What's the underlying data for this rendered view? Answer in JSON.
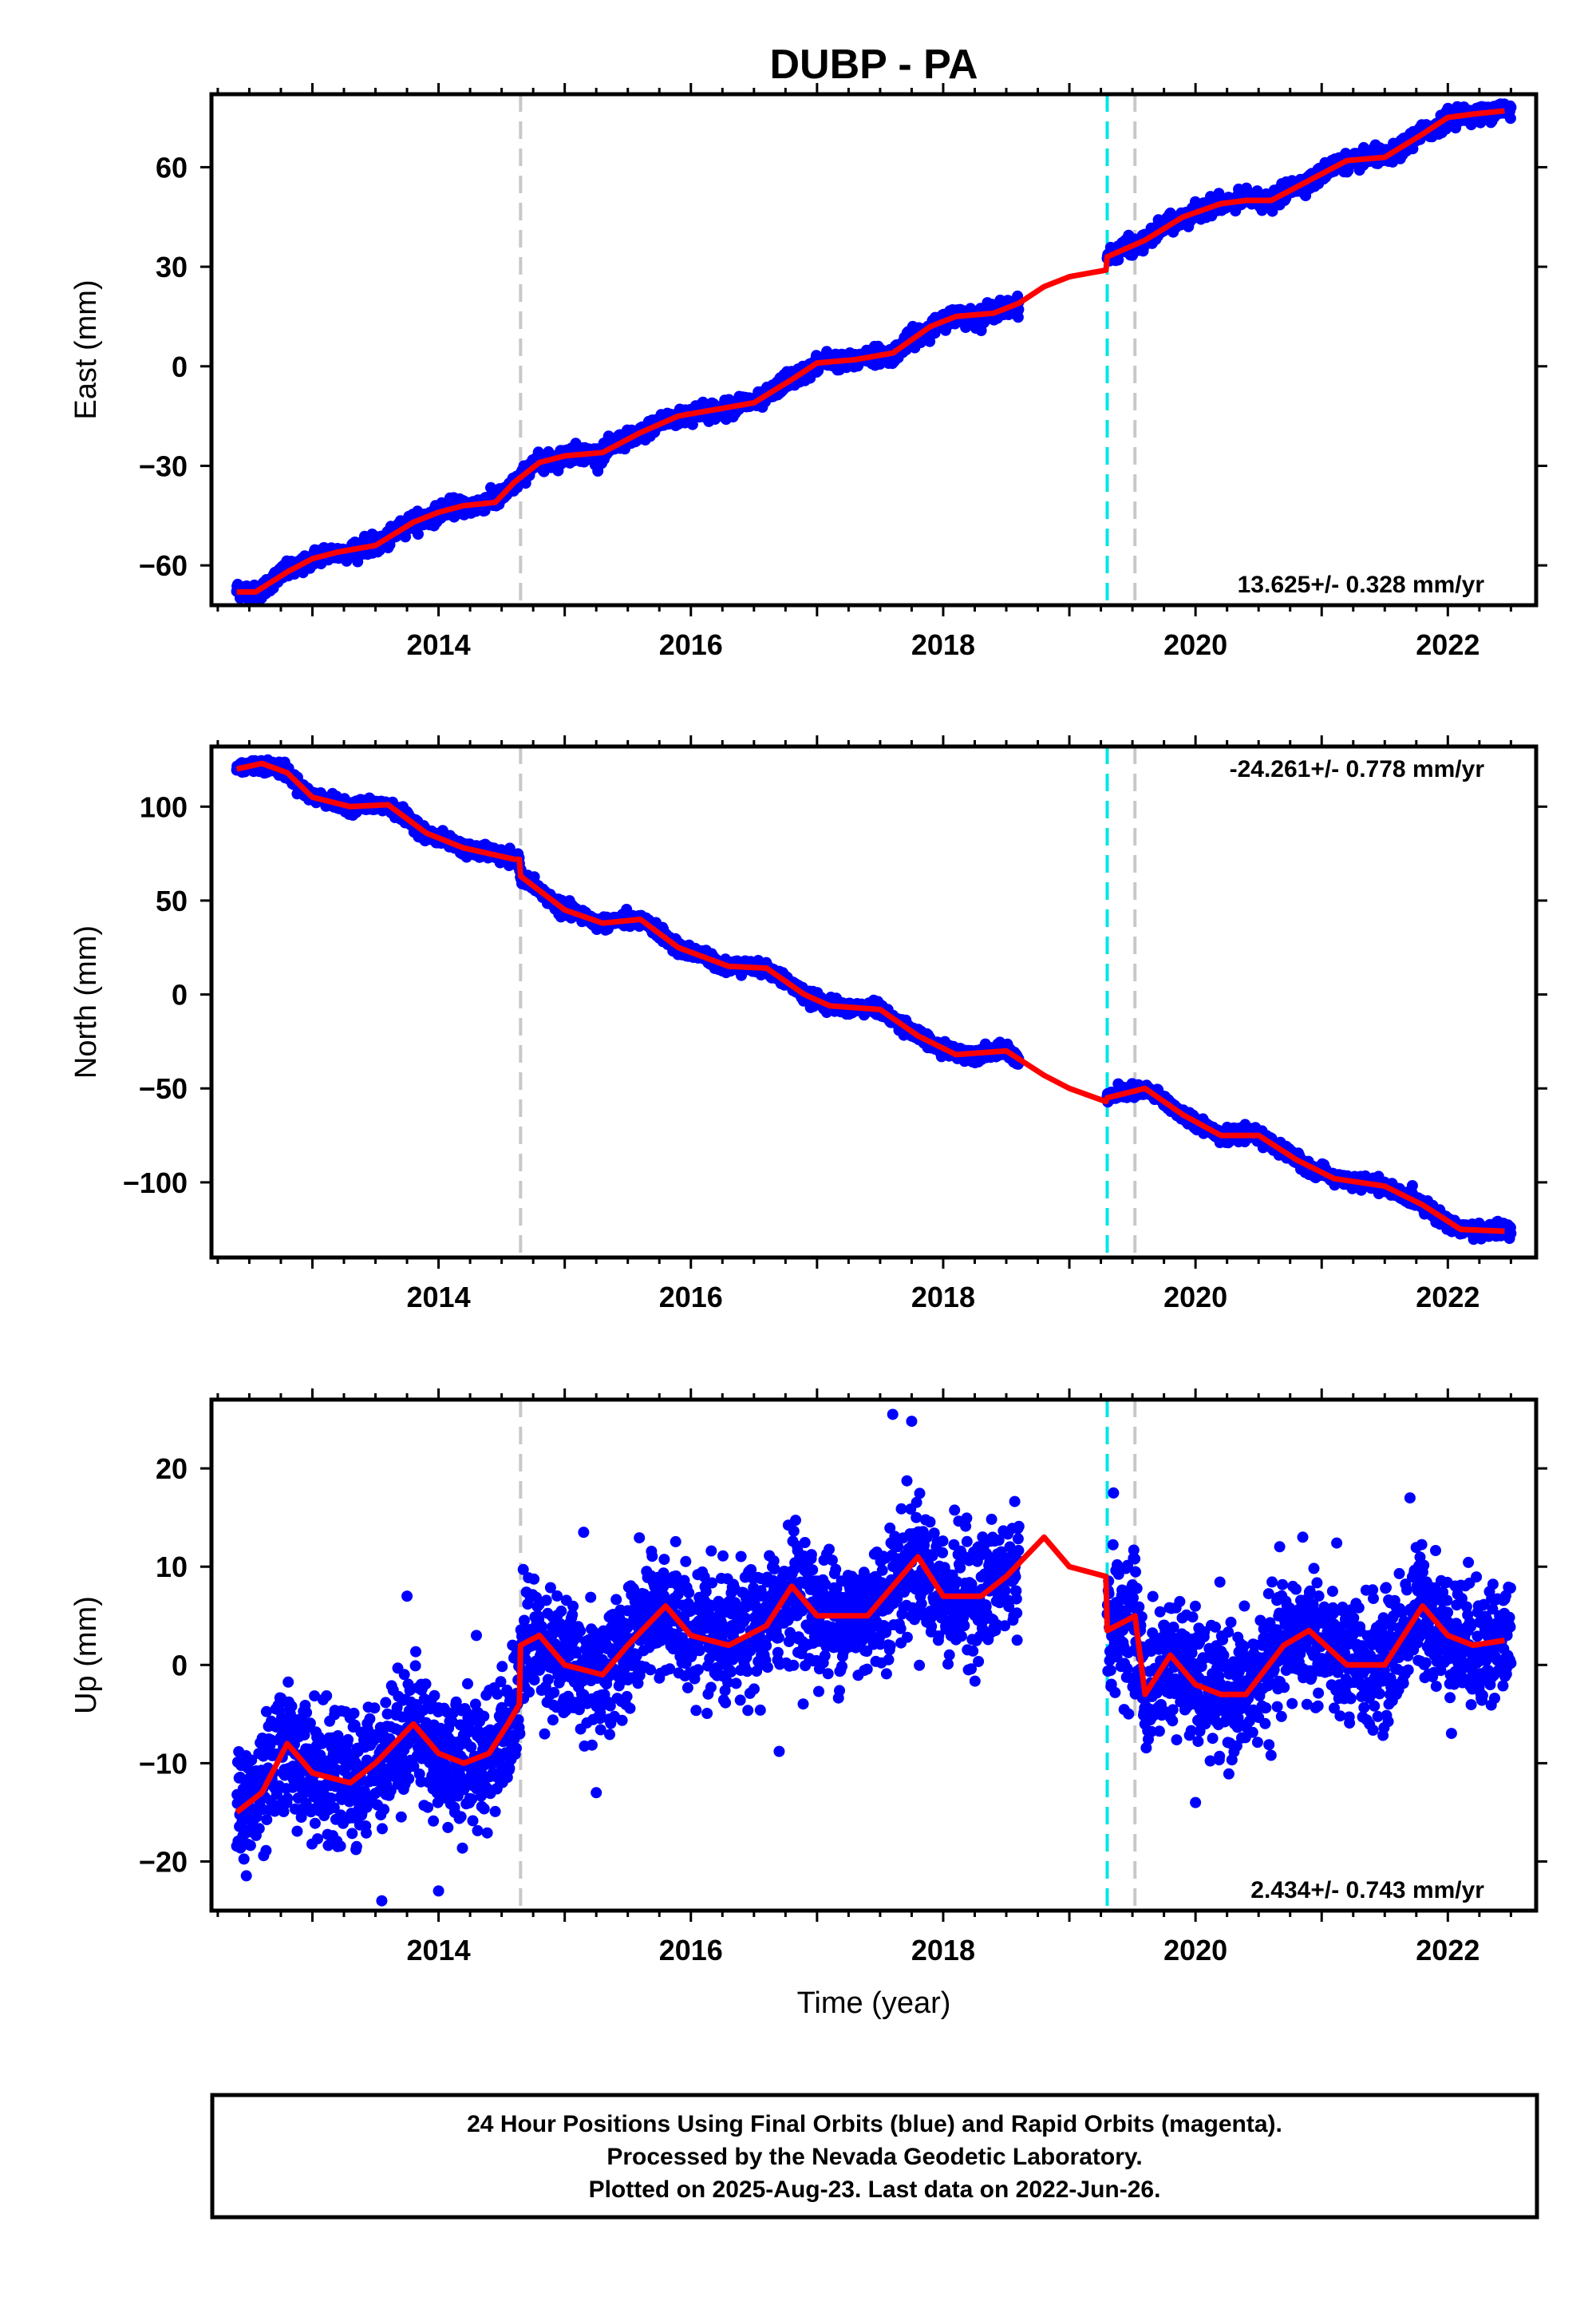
{
  "title": "DUBP - PA",
  "footer": {
    "lines": [
      "24 Hour Positions Using Final Orbits (blue) and Rapid Orbits (magenta).",
      "Processed by the Nevada Geodetic Laboratory.",
      "Plotted on 2025-Aug-23. Last data on 2022-Jun-26."
    ]
  },
  "colors": {
    "data_points": "#0000ff",
    "model_fit": "#ff0000",
    "antenna_change_line": "#c8c8c8",
    "earthquake_line": "#00e5e5"
  },
  "chart_data": [
    {
      "type": "scatter",
      "ylabel": "East (mm)",
      "xlabel": "",
      "xlim": [
        2012.2,
        2022.7
      ],
      "ylim": [
        -72,
        82
      ],
      "x_ticks": [
        2014,
        2016,
        2018,
        2020,
        2022
      ],
      "y_ticks": [
        60,
        30,
        0,
        -30,
        -60
      ],
      "y_tick_labels": [
        "60",
        "30",
        "0",
        "−30",
        "−60"
      ],
      "rate_label": "13.625+/- 0.328 mm/yr",
      "rate_position": "bottom-right",
      "vlines_gray": [
        2014.65,
        2019.52
      ],
      "vlines_cyan": [
        2019.3
      ],
      "model": {
        "x": [
          2012.4,
          2012.55,
          2012.8,
          2013.0,
          2013.2,
          2013.5,
          2013.8,
          2014.0,
          2014.2,
          2014.45,
          2014.6,
          2014.8,
          2015.0,
          2015.3,
          2015.6,
          2015.9,
          2016.2,
          2016.5,
          2016.8,
          2017.0,
          2017.3,
          2017.6,
          2017.9,
          2018.1,
          2018.4,
          2018.6,
          2018.8,
          2019.0,
          2019.29,
          2019.3,
          2019.6,
          2019.9,
          2020.2,
          2020.4,
          2020.6,
          2020.9,
          2021.2,
          2021.5,
          2021.8,
          2022.0,
          2022.2,
          2022.45
        ],
        "y": [
          -68,
          -68,
          -62,
          -58,
          -56,
          -54,
          -47,
          -44,
          -42,
          -41,
          -35,
          -29,
          -27,
          -26,
          -20,
          -15,
          -13,
          -11,
          -4,
          1,
          2,
          4,
          12,
          15,
          16,
          19,
          24,
          27,
          29,
          33,
          38,
          45,
          49,
          50,
          50,
          56,
          62,
          63,
          70,
          75,
          76,
          77
        ]
      },
      "points": {
        "segments": [
          [
            2012.4,
            2018.6
          ],
          [
            2019.3,
            2022.5
          ]
        ],
        "noise": 2.2,
        "outliers": []
      }
    },
    {
      "type": "scatter",
      "ylabel": "North (mm)",
      "xlabel": "",
      "xlim": [
        2012.2,
        2022.7
      ],
      "ylim": [
        -140,
        132
      ],
      "x_ticks": [
        2014,
        2016,
        2018,
        2020,
        2022
      ],
      "y_ticks": [
        100,
        50,
        0,
        -50,
        -100
      ],
      "y_tick_labels": [
        "100",
        "50",
        "0",
        "−50",
        "−100"
      ],
      "rate_label": "-24.261+/- 0.778 mm/yr",
      "rate_position": "top-right",
      "vlines_gray": [
        2014.65,
        2019.52
      ],
      "vlines_cyan": [
        2019.3
      ],
      "model": {
        "x": [
          2012.4,
          2012.6,
          2012.8,
          2013.0,
          2013.3,
          2013.6,
          2013.9,
          2014.2,
          2014.6,
          2014.64,
          2014.65,
          2015.0,
          2015.3,
          2015.6,
          2015.9,
          2016.3,
          2016.6,
          2016.9,
          2017.1,
          2017.5,
          2017.8,
          2018.1,
          2018.5,
          2018.8,
          2019.0,
          2019.29,
          2019.3,
          2019.6,
          2019.9,
          2020.2,
          2020.5,
          2020.8,
          2021.1,
          2021.5,
          2021.8,
          2022.1,
          2022.45
        ],
        "y": [
          120,
          123,
          118,
          105,
          100,
          101,
          86,
          78,
          72,
          72,
          63,
          45,
          38,
          40,
          25,
          15,
          14,
          0,
          -6,
          -8,
          -22,
          -32,
          -30,
          -43,
          -50,
          -57,
          -55,
          -50,
          -64,
          -75,
          -75,
          -88,
          -98,
          -102,
          -112,
          -125,
          -126
        ]
      },
      "points": {
        "segments": [
          [
            2012.4,
            2018.6
          ],
          [
            2019.3,
            2022.5
          ]
        ],
        "noise": 3.0,
        "outliers": []
      }
    },
    {
      "type": "scatter",
      "ylabel": "Up (mm)",
      "xlabel": "Time (year)",
      "xlim": [
        2012.2,
        2022.7
      ],
      "ylim": [
        -25,
        27
      ],
      "x_ticks": [
        2014,
        2016,
        2018,
        2020,
        2022
      ],
      "y_ticks": [
        20,
        10,
        0,
        -10,
        -20
      ],
      "y_tick_labels": [
        "20",
        "10",
        "0",
        "−10",
        "−20"
      ],
      "rate_label": "2.434+/- 0.743 mm/yr",
      "rate_position": "bottom-right",
      "vlines_gray": [
        2014.65,
        2019.52
      ],
      "vlines_cyan": [
        2019.3
      ],
      "model": {
        "x": [
          2012.4,
          2012.6,
          2012.8,
          2013.0,
          2013.3,
          2013.5,
          2013.8,
          2014.0,
          2014.2,
          2014.4,
          2014.55,
          2014.64,
          2014.65,
          2014.8,
          2015.0,
          2015.3,
          2015.5,
          2015.8,
          2016.0,
          2016.3,
          2016.6,
          2016.8,
          2017.0,
          2017.4,
          2017.8,
          2018.0,
          2018.3,
          2018.5,
          2018.8,
          2019.0,
          2019.29,
          2019.3,
          2019.45,
          2019.52,
          2019.6,
          2019.8,
          2020.0,
          2020.2,
          2020.4,
          2020.7,
          2020.9,
          2021.2,
          2021.5,
          2021.8,
          2022.0,
          2022.2,
          2022.45
        ],
        "y": [
          -15,
          -13,
          -8,
          -11,
          -12,
          -10,
          -6,
          -9,
          -10,
          -9,
          -6,
          -4,
          2,
          3,
          0,
          -1,
          2,
          6,
          3,
          2,
          4,
          8,
          5,
          5,
          11,
          7,
          7,
          9,
          13,
          10,
          9,
          3.5,
          4.5,
          5,
          -3,
          1,
          -2,
          -3,
          -3,
          2,
          3.5,
          0,
          0,
          6,
          3,
          2,
          2.5
        ]
      },
      "points": {
        "segments": [
          [
            2012.4,
            2018.6
          ],
          [
            2019.3,
            2022.5
          ]
        ],
        "noise": 3.2,
        "outliers": [
          [
            2013.75,
            7
          ],
          [
            2014.3,
            3
          ],
          [
            2017.6,
            25.5
          ],
          [
            2017.75,
            24.8
          ],
          [
            2013.55,
            -24
          ],
          [
            2014.0,
            -23
          ],
          [
            2015.15,
            13.5
          ],
          [
            2015.25,
            -13
          ],
          [
            2016.7,
            -8.8
          ],
          [
            2019.35,
            17.5
          ],
          [
            2020.0,
            -14
          ],
          [
            2021.7,
            17
          ],
          [
            2020.85,
            13
          ],
          [
            2018.2,
            -0.5
          ]
        ]
      }
    }
  ]
}
